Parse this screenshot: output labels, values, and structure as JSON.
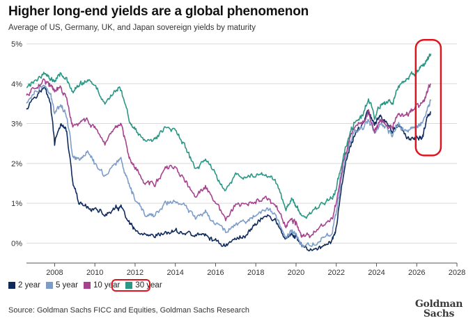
{
  "title": "Higher long-end yields are a global phenomenon",
  "subtitle": "Average of US, Germany, UK, and Japan sovereign yields by maturity",
  "source": "Source: Goldman Sachs FICC and Equities, Goldman Sachs Research",
  "logo": {
    "line1": "Goldman",
    "line2": "Sachs"
  },
  "legend": [
    {
      "label": "2 year",
      "color": "#102a5c"
    },
    {
      "label": "5 year",
      "color": "#7d9dc9"
    },
    {
      "label": "10 year",
      "color": "#a6428f"
    },
    {
      "label": "30 year",
      "color": "#2a9686"
    }
  ],
  "highlight_color": "#e0141e",
  "chart_data": {
    "type": "line",
    "title": "Higher long-end yields are a global phenomenon",
    "xlim": [
      2006.6,
      2028
    ],
    "ylim": [
      -0.5,
      5.0
    ],
    "xticks": [
      2008,
      2010,
      2012,
      2014,
      2016,
      2018,
      2020,
      2022,
      2024,
      2026,
      2028
    ],
    "yticks": [
      0,
      1,
      2,
      3,
      4,
      5
    ],
    "ytick_labels": [
      "0%",
      "1%",
      "2%",
      "3%",
      "4%",
      "5%"
    ],
    "grid": "horizontal",
    "legend_position": "bottom-left",
    "series": [
      {
        "name": "2 year",
        "color": "#102a5c",
        "points": [
          [
            2006.6,
            3.4
          ],
          [
            2007.0,
            3.7
          ],
          [
            2007.5,
            3.9
          ],
          [
            2007.8,
            3.5
          ],
          [
            2008.0,
            2.5
          ],
          [
            2008.3,
            3.0
          ],
          [
            2008.6,
            2.8
          ],
          [
            2008.9,
            1.5
          ],
          [
            2009.2,
            1.0
          ],
          [
            2009.6,
            0.9
          ],
          [
            2010.0,
            0.85
          ],
          [
            2010.5,
            0.7
          ],
          [
            2011.0,
            0.85
          ],
          [
            2011.3,
            0.9
          ],
          [
            2011.7,
            0.5
          ],
          [
            2012.0,
            0.3
          ],
          [
            2012.5,
            0.15
          ],
          [
            2013.0,
            0.15
          ],
          [
            2013.5,
            0.25
          ],
          [
            2014.0,
            0.3
          ],
          [
            2014.5,
            0.25
          ],
          [
            2015.0,
            0.2
          ],
          [
            2015.5,
            0.2
          ],
          [
            2016.0,
            0.05
          ],
          [
            2016.5,
            -0.05
          ],
          [
            2017.0,
            0.1
          ],
          [
            2017.5,
            0.2
          ],
          [
            2018.0,
            0.5
          ],
          [
            2018.5,
            0.7
          ],
          [
            2019.0,
            0.55
          ],
          [
            2019.5,
            0.1
          ],
          [
            2019.8,
            0.2
          ],
          [
            2020.0,
            0.15
          ],
          [
            2020.3,
            -0.1
          ],
          [
            2020.8,
            -0.15
          ],
          [
            2021.3,
            -0.1
          ],
          [
            2021.8,
            0.05
          ],
          [
            2022.0,
            0.4
          ],
          [
            2022.3,
            1.5
          ],
          [
            2022.6,
            2.3
          ],
          [
            2022.9,
            2.7
          ],
          [
            2023.3,
            3.0
          ],
          [
            2023.6,
            3.3
          ],
          [
            2023.9,
            3.0
          ],
          [
            2024.2,
            3.2
          ],
          [
            2024.5,
            3.0
          ],
          [
            2024.8,
            2.8
          ],
          [
            2025.1,
            3.0
          ],
          [
            2025.4,
            2.7
          ],
          [
            2025.7,
            2.6
          ],
          [
            2026.0,
            2.6
          ],
          [
            2026.3,
            2.7
          ],
          [
            2026.5,
            3.1
          ],
          [
            2026.7,
            3.3
          ]
        ]
      },
      {
        "name": "5 year",
        "color": "#7d9dc9",
        "points": [
          [
            2006.6,
            3.5
          ],
          [
            2007.0,
            3.8
          ],
          [
            2007.5,
            3.95
          ],
          [
            2007.8,
            3.7
          ],
          [
            2008.0,
            3.3
          ],
          [
            2008.3,
            3.5
          ],
          [
            2008.6,
            3.2
          ],
          [
            2008.9,
            2.2
          ],
          [
            2009.2,
            2.1
          ],
          [
            2009.6,
            2.3
          ],
          [
            2010.0,
            2.0
          ],
          [
            2010.5,
            1.7
          ],
          [
            2011.0,
            2.0
          ],
          [
            2011.3,
            2.1
          ],
          [
            2011.7,
            1.4
          ],
          [
            2012.0,
            1.1
          ],
          [
            2012.5,
            0.7
          ],
          [
            2013.0,
            0.7
          ],
          [
            2013.5,
            1.0
          ],
          [
            2014.0,
            1.05
          ],
          [
            2014.5,
            0.9
          ],
          [
            2015.0,
            0.65
          ],
          [
            2015.5,
            0.8
          ],
          [
            2016.0,
            0.5
          ],
          [
            2016.5,
            0.3
          ],
          [
            2017.0,
            0.5
          ],
          [
            2017.5,
            0.55
          ],
          [
            2018.0,
            0.7
          ],
          [
            2018.5,
            0.85
          ],
          [
            2019.0,
            0.7
          ],
          [
            2019.5,
            0.15
          ],
          [
            2019.8,
            0.3
          ],
          [
            2020.0,
            0.2
          ],
          [
            2020.3,
            -0.05
          ],
          [
            2020.8,
            -0.05
          ],
          [
            2021.3,
            0.1
          ],
          [
            2021.8,
            0.3
          ],
          [
            2022.0,
            0.8
          ],
          [
            2022.3,
            1.7
          ],
          [
            2022.6,
            2.4
          ],
          [
            2022.9,
            2.8
          ],
          [
            2023.3,
            2.9
          ],
          [
            2023.6,
            3.1
          ],
          [
            2023.9,
            2.8
          ],
          [
            2024.2,
            3.0
          ],
          [
            2024.5,
            2.85
          ],
          [
            2024.8,
            2.7
          ],
          [
            2025.1,
            3.0
          ],
          [
            2025.4,
            2.8
          ],
          [
            2025.7,
            2.85
          ],
          [
            2026.0,
            2.95
          ],
          [
            2026.3,
            3.05
          ],
          [
            2026.5,
            3.3
          ],
          [
            2026.7,
            3.6
          ]
        ]
      },
      {
        "name": "10 year",
        "color": "#a6428f",
        "points": [
          [
            2006.6,
            3.7
          ],
          [
            2007.0,
            3.9
          ],
          [
            2007.5,
            4.1
          ],
          [
            2007.8,
            3.95
          ],
          [
            2008.0,
            3.8
          ],
          [
            2008.3,
            3.9
          ],
          [
            2008.6,
            3.6
          ],
          [
            2008.9,
            2.9
          ],
          [
            2009.2,
            3.0
          ],
          [
            2009.6,
            3.1
          ],
          [
            2010.0,
            2.9
          ],
          [
            2010.5,
            2.4
          ],
          [
            2011.0,
            2.9
          ],
          [
            2011.3,
            3.0
          ],
          [
            2011.7,
            2.2
          ],
          [
            2012.0,
            1.9
          ],
          [
            2012.5,
            1.5
          ],
          [
            2013.0,
            1.5
          ],
          [
            2013.5,
            1.85
          ],
          [
            2014.0,
            1.9
          ],
          [
            2014.5,
            1.55
          ],
          [
            2015.0,
            1.15
          ],
          [
            2015.5,
            1.4
          ],
          [
            2016.0,
            1.0
          ],
          [
            2016.5,
            0.6
          ],
          [
            2017.0,
            0.95
          ],
          [
            2017.5,
            0.95
          ],
          [
            2018.0,
            1.05
          ],
          [
            2018.5,
            1.1
          ],
          [
            2019.0,
            0.95
          ],
          [
            2019.5,
            0.4
          ],
          [
            2019.8,
            0.6
          ],
          [
            2020.0,
            0.5
          ],
          [
            2020.3,
            0.15
          ],
          [
            2020.8,
            0.2
          ],
          [
            2021.3,
            0.45
          ],
          [
            2021.8,
            0.6
          ],
          [
            2022.0,
            1.0
          ],
          [
            2022.3,
            1.9
          ],
          [
            2022.6,
            2.5
          ],
          [
            2022.9,
            2.9
          ],
          [
            2023.3,
            3.0
          ],
          [
            2023.6,
            3.3
          ],
          [
            2023.9,
            2.8
          ],
          [
            2024.2,
            3.1
          ],
          [
            2024.5,
            3.0
          ],
          [
            2024.8,
            2.9
          ],
          [
            2025.1,
            3.25
          ],
          [
            2025.4,
            3.15
          ],
          [
            2025.7,
            3.3
          ],
          [
            2026.0,
            3.45
          ],
          [
            2026.3,
            3.55
          ],
          [
            2026.5,
            3.75
          ],
          [
            2026.7,
            4.0
          ]
        ]
      },
      {
        "name": "30 year",
        "color": "#2a9686",
        "points": [
          [
            2006.6,
            3.9
          ],
          [
            2007.0,
            4.05
          ],
          [
            2007.5,
            4.3
          ],
          [
            2007.8,
            4.1
          ],
          [
            2008.0,
            4.1
          ],
          [
            2008.3,
            4.3
          ],
          [
            2008.6,
            4.1
          ],
          [
            2008.9,
            3.75
          ],
          [
            2009.2,
            3.95
          ],
          [
            2009.6,
            4.1
          ],
          [
            2010.0,
            3.95
          ],
          [
            2010.5,
            3.5
          ],
          [
            2011.0,
            3.85
          ],
          [
            2011.3,
            3.85
          ],
          [
            2011.7,
            3.1
          ],
          [
            2012.0,
            2.85
          ],
          [
            2012.5,
            2.55
          ],
          [
            2013.0,
            2.6
          ],
          [
            2013.5,
            2.9
          ],
          [
            2014.0,
            2.85
          ],
          [
            2014.5,
            2.4
          ],
          [
            2015.0,
            1.85
          ],
          [
            2015.5,
            2.1
          ],
          [
            2016.0,
            1.75
          ],
          [
            2016.5,
            1.3
          ],
          [
            2017.0,
            1.7
          ],
          [
            2017.5,
            1.65
          ],
          [
            2018.0,
            1.7
          ],
          [
            2018.5,
            1.75
          ],
          [
            2019.0,
            1.55
          ],
          [
            2019.5,
            0.85
          ],
          [
            2019.8,
            1.1
          ],
          [
            2020.0,
            0.95
          ],
          [
            2020.3,
            0.65
          ],
          [
            2020.8,
            0.75
          ],
          [
            2021.3,
            1.0
          ],
          [
            2021.8,
            1.1
          ],
          [
            2022.0,
            1.4
          ],
          [
            2022.3,
            2.1
          ],
          [
            2022.6,
            2.6
          ],
          [
            2022.9,
            3.05
          ],
          [
            2023.3,
            3.2
          ],
          [
            2023.6,
            3.6
          ],
          [
            2023.9,
            3.15
          ],
          [
            2024.2,
            3.45
          ],
          [
            2024.5,
            3.55
          ],
          [
            2024.8,
            3.5
          ],
          [
            2025.1,
            3.9
          ],
          [
            2025.4,
            4.05
          ],
          [
            2025.7,
            4.2
          ],
          [
            2026.0,
            4.3
          ],
          [
            2026.3,
            4.45
          ],
          [
            2026.5,
            4.6
          ],
          [
            2026.7,
            4.75
          ]
        ]
      }
    ]
  }
}
